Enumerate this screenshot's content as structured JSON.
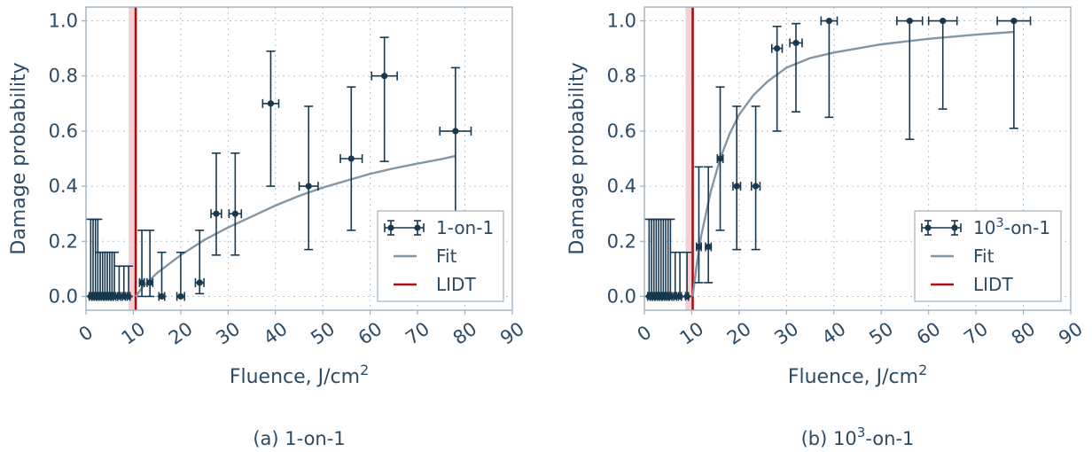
{
  "chart_data": [
    {
      "type": "scatter",
      "caption": "(a) 1-on-1",
      "xlabel": "Fluence, J/cm",
      "xlabel_sup": "2",
      "ylabel": "Damage probability",
      "xlim": [
        0,
        90
      ],
      "ylim": [
        -0.05,
        1.05
      ],
      "xticks": [
        0,
        10,
        20,
        30,
        40,
        50,
        60,
        70,
        80,
        90
      ],
      "yticks": [
        0.0,
        0.2,
        0.4,
        0.6,
        0.8,
        1.0
      ],
      "grid": true,
      "legend_position": "lower-right",
      "legend": {
        "data": "1-on-1",
        "fit": "Fit",
        "lidt": "LIDT"
      },
      "lidt": 10.5,
      "lidt_band": [
        9.0,
        10.5
      ],
      "series": [
        {
          "name": "1-on-1",
          "points": [
            {
              "x": 1.0,
              "y": 0.0,
              "xerr": 0.3,
              "yerr_lo": 0.0,
              "yerr_hi": 0.28
            },
            {
              "x": 1.5,
              "y": 0.0,
              "xerr": 0.3,
              "yerr_lo": 0.0,
              "yerr_hi": 0.28
            },
            {
              "x": 2.0,
              "y": 0.0,
              "xerr": 0.3,
              "yerr_lo": 0.0,
              "yerr_hi": 0.28
            },
            {
              "x": 2.5,
              "y": 0.0,
              "xerr": 0.3,
              "yerr_lo": 0.0,
              "yerr_hi": 0.28
            },
            {
              "x": 3.0,
              "y": 0.0,
              "xerr": 0.3,
              "yerr_lo": 0.0,
              "yerr_hi": 0.16
            },
            {
              "x": 3.5,
              "y": 0.0,
              "xerr": 0.3,
              "yerr_lo": 0.0,
              "yerr_hi": 0.16
            },
            {
              "x": 4.0,
              "y": 0.0,
              "xerr": 0.3,
              "yerr_lo": 0.0,
              "yerr_hi": 0.16
            },
            {
              "x": 4.5,
              "y": 0.0,
              "xerr": 0.3,
              "yerr_lo": 0.0,
              "yerr_hi": 0.16
            },
            {
              "x": 5.0,
              "y": 0.0,
              "xerr": 0.3,
              "yerr_lo": 0.0,
              "yerr_hi": 0.16
            },
            {
              "x": 5.5,
              "y": 0.0,
              "xerr": 0.3,
              "yerr_lo": 0.0,
              "yerr_hi": 0.16
            },
            {
              "x": 6.0,
              "y": 0.0,
              "xerr": 0.3,
              "yerr_lo": 0.0,
              "yerr_hi": 0.16
            },
            {
              "x": 7.0,
              "y": 0.0,
              "xerr": 0.3,
              "yerr_lo": 0.0,
              "yerr_hi": 0.11
            },
            {
              "x": 8.0,
              "y": 0.0,
              "xerr": 0.3,
              "yerr_lo": 0.0,
              "yerr_hi": 0.11
            },
            {
              "x": 9.0,
              "y": 0.0,
              "xerr": 0.3,
              "yerr_lo": 0.0,
              "yerr_hi": 0.11
            },
            {
              "x": 11.8,
              "y": 0.05,
              "xerr": 0.5,
              "yerr_lo": 0.05,
              "yerr_hi": 0.19
            },
            {
              "x": 13.5,
              "y": 0.05,
              "xerr": 0.6,
              "yerr_lo": 0.05,
              "yerr_hi": 0.19
            },
            {
              "x": 16.0,
              "y": 0.0,
              "xerr": 0.6,
              "yerr_lo": 0.0,
              "yerr_hi": 0.16
            },
            {
              "x": 20.0,
              "y": 0.0,
              "xerr": 0.8,
              "yerr_lo": 0.0,
              "yerr_hi": 0.16
            },
            {
              "x": 24.0,
              "y": 0.05,
              "xerr": 0.9,
              "yerr_lo": 0.04,
              "yerr_hi": 0.19
            },
            {
              "x": 27.5,
              "y": 0.3,
              "xerr": 1.1,
              "yerr_lo": 0.15,
              "yerr_hi": 0.22
            },
            {
              "x": 31.5,
              "y": 0.3,
              "xerr": 1.3,
              "yerr_lo": 0.15,
              "yerr_hi": 0.22
            },
            {
              "x": 39.0,
              "y": 0.7,
              "xerr": 1.7,
              "yerr_lo": 0.3,
              "yerr_hi": 0.19
            },
            {
              "x": 47.0,
              "y": 0.4,
              "xerr": 2.0,
              "yerr_lo": 0.23,
              "yerr_hi": 0.29
            },
            {
              "x": 56.0,
              "y": 0.5,
              "xerr": 2.3,
              "yerr_lo": 0.26,
              "yerr_hi": 0.26
            },
            {
              "x": 63.0,
              "y": 0.8,
              "xerr": 2.7,
              "yerr_lo": 0.31,
              "yerr_hi": 0.14
            },
            {
              "x": 78.0,
              "y": 0.6,
              "xerr": 3.3,
              "yerr_lo": 0.3,
              "yerr_hi": 0.23
            }
          ]
        },
        {
          "name": "Fit",
          "x": [
            10.5,
            12,
            15,
            20,
            25,
            30,
            35,
            40,
            45,
            50,
            55,
            60,
            65,
            70,
            75,
            78
          ],
          "y": [
            0.0,
            0.035,
            0.085,
            0.15,
            0.205,
            0.25,
            0.29,
            0.33,
            0.365,
            0.395,
            0.42,
            0.445,
            0.465,
            0.482,
            0.498,
            0.51
          ]
        }
      ]
    },
    {
      "type": "scatter",
      "caption_prefix": "(b) 10",
      "caption_sup": "3",
      "caption_suffix": "-on-1",
      "xlabel": "Fluence, J/cm",
      "xlabel_sup": "2",
      "ylabel": "Damage probability",
      "xlim": [
        0,
        90
      ],
      "ylim": [
        -0.05,
        1.05
      ],
      "xticks": [
        0,
        10,
        20,
        30,
        40,
        50,
        60,
        70,
        80,
        90
      ],
      "yticks": [
        0.0,
        0.2,
        0.4,
        0.6,
        0.8,
        1.0
      ],
      "grid": true,
      "legend_position": "lower-right",
      "legend": {
        "data_prefix": "10",
        "data_sup": "3",
        "data_suffix": "-on-1",
        "fit": "Fit",
        "lidt": "LIDT"
      },
      "lidt": 10.2,
      "lidt_band": [
        8.7,
        10.2
      ],
      "series": [
        {
          "name": "10³-on-1",
          "points": [
            {
              "x": 1.0,
              "y": 0.0,
              "xerr": 0.3,
              "yerr_lo": 0.0,
              "yerr_hi": 0.28
            },
            {
              "x": 1.5,
              "y": 0.0,
              "xerr": 0.3,
              "yerr_lo": 0.0,
              "yerr_hi": 0.28
            },
            {
              "x": 2.0,
              "y": 0.0,
              "xerr": 0.3,
              "yerr_lo": 0.0,
              "yerr_hi": 0.28
            },
            {
              "x": 2.5,
              "y": 0.0,
              "xerr": 0.3,
              "yerr_lo": 0.0,
              "yerr_hi": 0.28
            },
            {
              "x": 3.0,
              "y": 0.0,
              "xerr": 0.3,
              "yerr_lo": 0.0,
              "yerr_hi": 0.28
            },
            {
              "x": 3.5,
              "y": 0.0,
              "xerr": 0.3,
              "yerr_lo": 0.0,
              "yerr_hi": 0.28
            },
            {
              "x": 4.0,
              "y": 0.0,
              "xerr": 0.3,
              "yerr_lo": 0.0,
              "yerr_hi": 0.28
            },
            {
              "x": 4.5,
              "y": 0.0,
              "xerr": 0.3,
              "yerr_lo": 0.0,
              "yerr_hi": 0.28
            },
            {
              "x": 5.0,
              "y": 0.0,
              "xerr": 0.3,
              "yerr_lo": 0.0,
              "yerr_hi": 0.28
            },
            {
              "x": 5.5,
              "y": 0.0,
              "xerr": 0.3,
              "yerr_lo": 0.0,
              "yerr_hi": 0.28
            },
            {
              "x": 6.5,
              "y": 0.0,
              "xerr": 0.3,
              "yerr_lo": 0.0,
              "yerr_hi": 0.16
            },
            {
              "x": 7.5,
              "y": 0.0,
              "xerr": 0.3,
              "yerr_lo": 0.0,
              "yerr_hi": 0.16
            },
            {
              "x": 9.0,
              "y": 0.0,
              "xerr": 0.3,
              "yerr_lo": 0.0,
              "yerr_hi": 0.16
            },
            {
              "x": 11.5,
              "y": 0.18,
              "xerr": 0.5,
              "yerr_lo": 0.13,
              "yerr_hi": 0.29
            },
            {
              "x": 13.5,
              "y": 0.18,
              "xerr": 0.6,
              "yerr_lo": 0.13,
              "yerr_hi": 0.29
            },
            {
              "x": 16.0,
              "y": 0.5,
              "xerr": 0.6,
              "yerr_lo": 0.26,
              "yerr_hi": 0.26
            },
            {
              "x": 19.5,
              "y": 0.4,
              "xerr": 0.8,
              "yerr_lo": 0.23,
              "yerr_hi": 0.29
            },
            {
              "x": 23.5,
              "y": 0.4,
              "xerr": 0.9,
              "yerr_lo": 0.23,
              "yerr_hi": 0.29
            },
            {
              "x": 28.0,
              "y": 0.9,
              "xerr": 1.1,
              "yerr_lo": 0.3,
              "yerr_hi": 0.08
            },
            {
              "x": 32.0,
              "y": 0.92,
              "xerr": 1.3,
              "yerr_lo": 0.25,
              "yerr_hi": 0.07
            },
            {
              "x": 39.0,
              "y": 1.0,
              "xerr": 1.7,
              "yerr_lo": 0.35,
              "yerr_hi": 0.0
            },
            {
              "x": 56.0,
              "y": 1.0,
              "xerr": 2.7,
              "yerr_lo": 0.43,
              "yerr_hi": 0.0
            },
            {
              "x": 63.0,
              "y": 1.0,
              "xerr": 3.0,
              "yerr_lo": 0.32,
              "yerr_hi": 0.0
            },
            {
              "x": 78.0,
              "y": 1.0,
              "xerr": 3.5,
              "yerr_lo": 0.39,
              "yerr_hi": 0.0
            }
          ]
        },
        {
          "name": "Fit",
          "x": [
            10.2,
            11,
            12,
            14,
            16,
            18,
            20,
            23,
            26,
            30,
            35,
            40,
            50,
            60,
            70,
            78
          ],
          "y": [
            0.0,
            0.11,
            0.22,
            0.38,
            0.5,
            0.59,
            0.66,
            0.73,
            0.78,
            0.83,
            0.865,
            0.885,
            0.915,
            0.935,
            0.95,
            0.96
          ]
        }
      ]
    }
  ]
}
